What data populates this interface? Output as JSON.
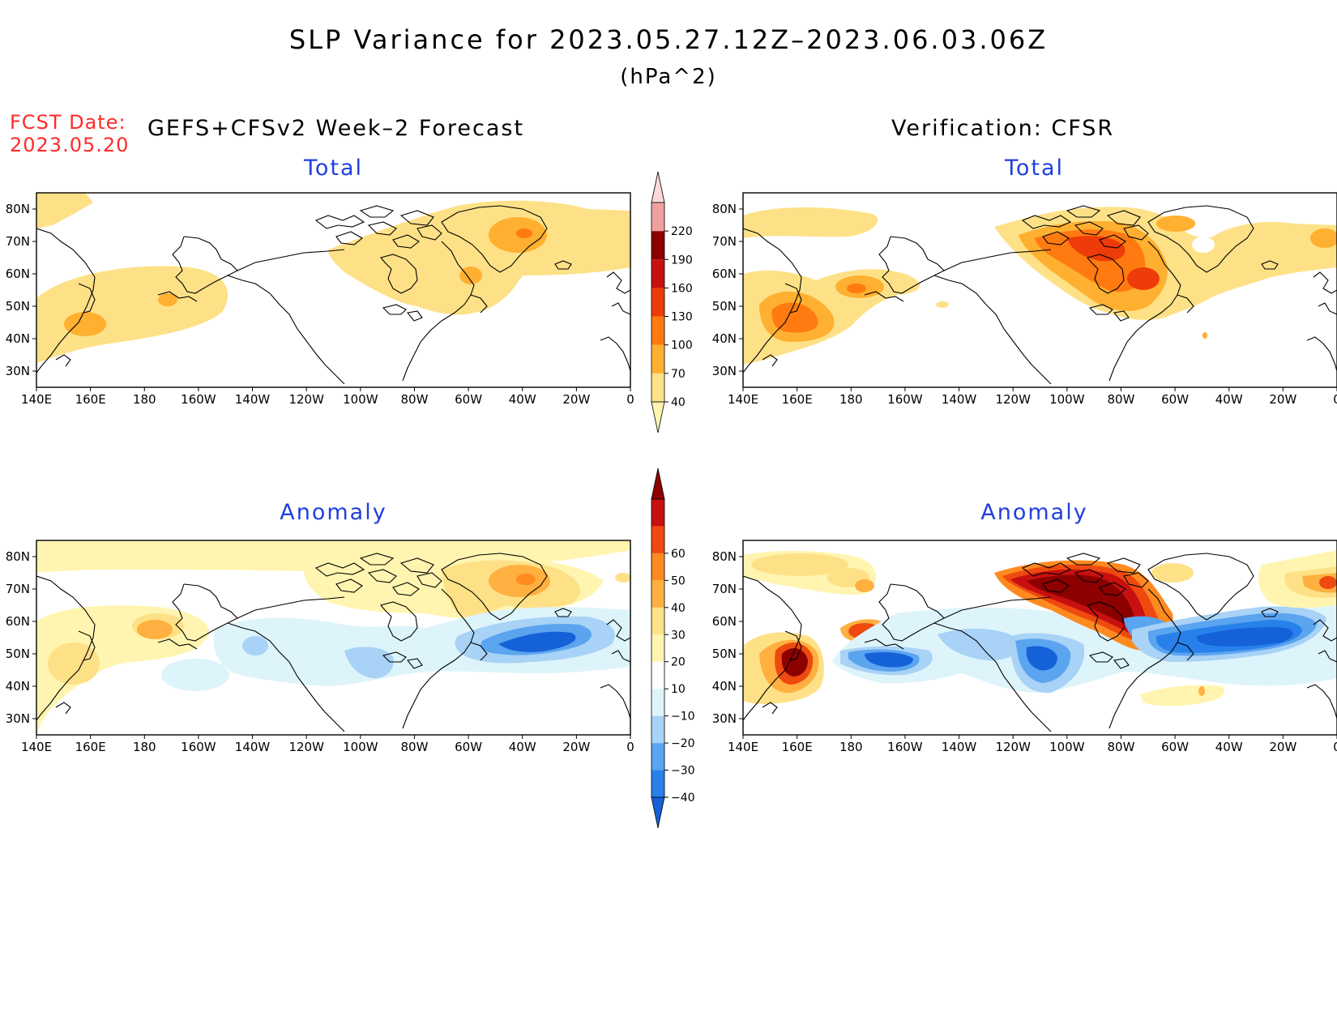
{
  "title": "SLP Variance for 2023.05.27.12Z–2023.06.03.06Z",
  "units": "(hPa^2)",
  "fcst_date": {
    "label": "FCST Date:",
    "value": "2023.05.20"
  },
  "left_heading": "GEFS+CFSv2 Week–2 Forecast",
  "right_heading": "Verification: CFSR",
  "panels": [
    {
      "id": "fcst-total",
      "title": "Total"
    },
    {
      "id": "verif-total",
      "title": "Total"
    },
    {
      "id": "fcst-anom",
      "title": "Anomaly"
    },
    {
      "id": "verif-anom",
      "title": "Anomaly"
    }
  ],
  "lat_labels": [
    "80N",
    "70N",
    "60N",
    "50N",
    "40N",
    "30N"
  ],
  "lon_labels": [
    "140E",
    "160E",
    "180",
    "160W",
    "140W",
    "120W",
    "100W",
    "80W",
    "60W",
    "40W",
    "20W",
    "0"
  ],
  "colorbar_total": {
    "labels": [
      "40",
      "70",
      "100",
      "130",
      "160",
      "190",
      "220"
    ],
    "colors": [
      "#fff5b0",
      "#fee187",
      "#ffb030",
      "#ff7a10",
      "#ee3b0a",
      "#c81010",
      "#8c0000",
      "#f0a0a0",
      "#fcd8d8"
    ]
  },
  "colorbar_anom": {
    "labels": [
      "−40",
      "−30",
      "−20",
      "−10",
      "10",
      "20",
      "30",
      "40",
      "50",
      "60"
    ],
    "colors": [
      "#1561d8",
      "#2880ea",
      "#5aa4f0",
      "#a8d2f6",
      "#def4fb",
      "#ffffff",
      "#fff5b0",
      "#fee187",
      "#ffb040",
      "#ff8a20",
      "#ee4a10",
      "#c81010",
      "#8c0000"
    ]
  }
}
